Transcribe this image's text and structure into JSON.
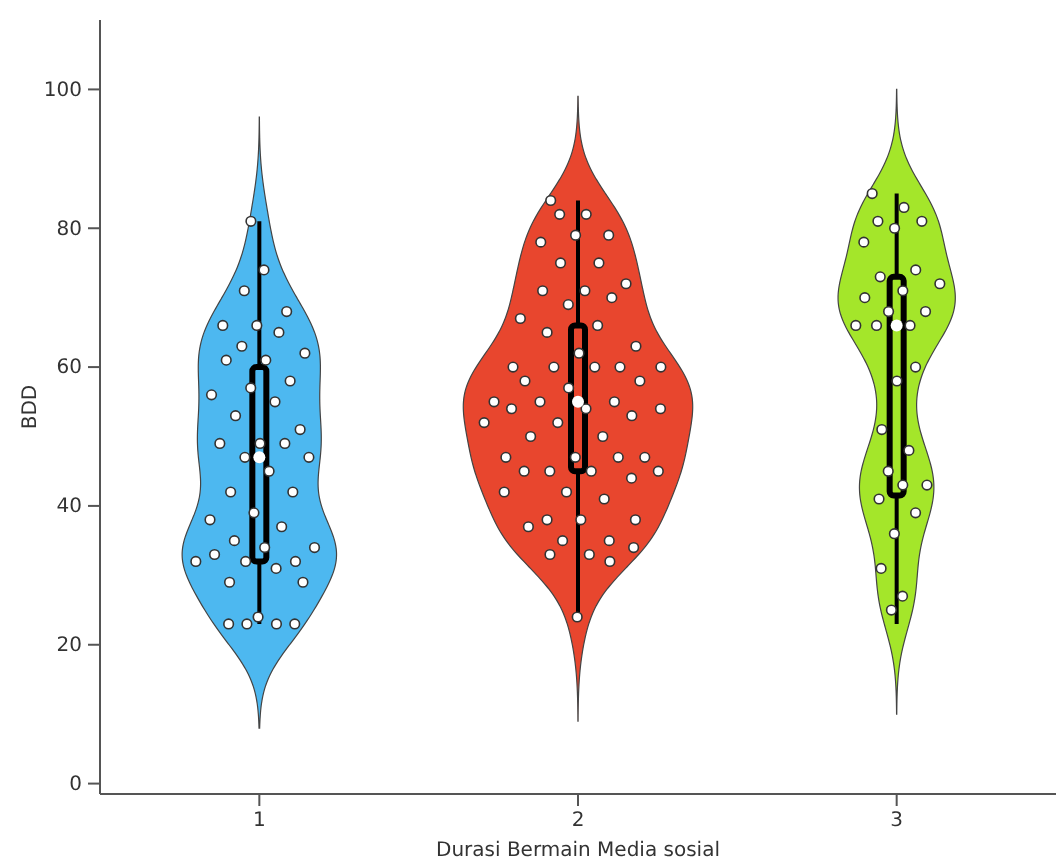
{
  "chart_data": {
    "type": "box",
    "xlabel": "Durasi Bermain Media sosial",
    "ylabel": "BDD",
    "categories": [
      "1",
      "2",
      "3"
    ],
    "colors": [
      "#4db8f0",
      "#e8462e",
      "#a4e62a"
    ],
    "boxes": [
      {
        "low": 23,
        "q1": 32,
        "median": 47,
        "q3": 60,
        "high": 81
      },
      {
        "low": 24,
        "q1": 45,
        "median": 55,
        "q3": 66,
        "high": 84
      },
      {
        "low": 23,
        "q1": 41.5,
        "median": 66,
        "q3": 73,
        "high": 85
      }
    ],
    "series": [
      {
        "type": "scatter",
        "color": "#ffffff",
        "x": [
          "1",
          "1",
          "1",
          "1",
          "1",
          "1",
          "1",
          "1",
          "1",
          "1",
          "1",
          "1",
          "1",
          "1",
          "1",
          "1",
          "1",
          "1",
          "1",
          "1",
          "1",
          "1",
          "1",
          "1",
          "1",
          "1",
          "1",
          "1",
          "1",
          "1",
          "1",
          "1",
          "1",
          "1",
          "1",
          "1",
          "1",
          "1",
          "1",
          "1",
          "1",
          "1",
          "1"
        ],
        "values": [
          81,
          74,
          71,
          68,
          66,
          66,
          65,
          63,
          62,
          61,
          61,
          58,
          57,
          56,
          55,
          53,
          51,
          49,
          49,
          49,
          47,
          47,
          45,
          42,
          42,
          39,
          38,
          37,
          35,
          34,
          34,
          33,
          32,
          32,
          32,
          31,
          29,
          29,
          24,
          23,
          23,
          23,
          23
        ]
      },
      {
        "type": "scatter",
        "color": "#ffffff",
        "x": [
          "2",
          "2",
          "2",
          "2",
          "2",
          "2",
          "2",
          "2",
          "2",
          "2",
          "2",
          "2",
          "2",
          "2",
          "2",
          "2",
          "2",
          "2",
          "2",
          "2",
          "2",
          "2",
          "2",
          "2",
          "2",
          "2",
          "2",
          "2",
          "2",
          "2",
          "2",
          "2",
          "2",
          "2",
          "2",
          "2",
          "2",
          "2",
          "2",
          "2",
          "2",
          "2",
          "2",
          "2",
          "2",
          "2",
          "2",
          "2",
          "2",
          "2",
          "2",
          "2",
          "2",
          "2",
          "2",
          "2",
          "2",
          "2",
          "2",
          "2"
        ],
        "values": [
          84,
          82,
          82,
          79,
          79,
          78,
          75,
          75,
          72,
          71,
          71,
          70,
          69,
          67,
          66,
          65,
          63,
          62,
          60,
          60,
          60,
          60,
          60,
          58,
          58,
          57,
          55,
          55,
          55,
          54,
          54,
          54,
          53,
          52,
          52,
          50,
          50,
          47,
          47,
          47,
          47,
          45,
          45,
          45,
          45,
          44,
          42,
          42,
          41,
          38,
          38,
          38,
          37,
          35,
          35,
          34,
          33,
          33,
          32,
          24
        ]
      },
      {
        "type": "scatter",
        "color": "#ffffff",
        "x": [
          "3",
          "3",
          "3",
          "3",
          "3",
          "3",
          "3",
          "3",
          "3",
          "3",
          "3",
          "3",
          "3",
          "3",
          "3",
          "3",
          "3",
          "3",
          "3",
          "3",
          "3",
          "3",
          "3",
          "3",
          "3",
          "3",
          "3",
          "3",
          "3"
        ],
        "values": [
          85,
          83,
          81,
          81,
          80,
          78,
          74,
          73,
          72,
          71,
          70,
          68,
          68,
          66,
          66,
          66,
          60,
          58,
          51,
          48,
          45,
          43,
          43,
          41,
          39,
          36,
          31,
          27,
          25
        ]
      }
    ],
    "marker": "circle",
    "ylim": [
      -1.5,
      110
    ],
    "yticks": [
      0,
      20,
      40,
      60,
      80,
      100
    ]
  }
}
